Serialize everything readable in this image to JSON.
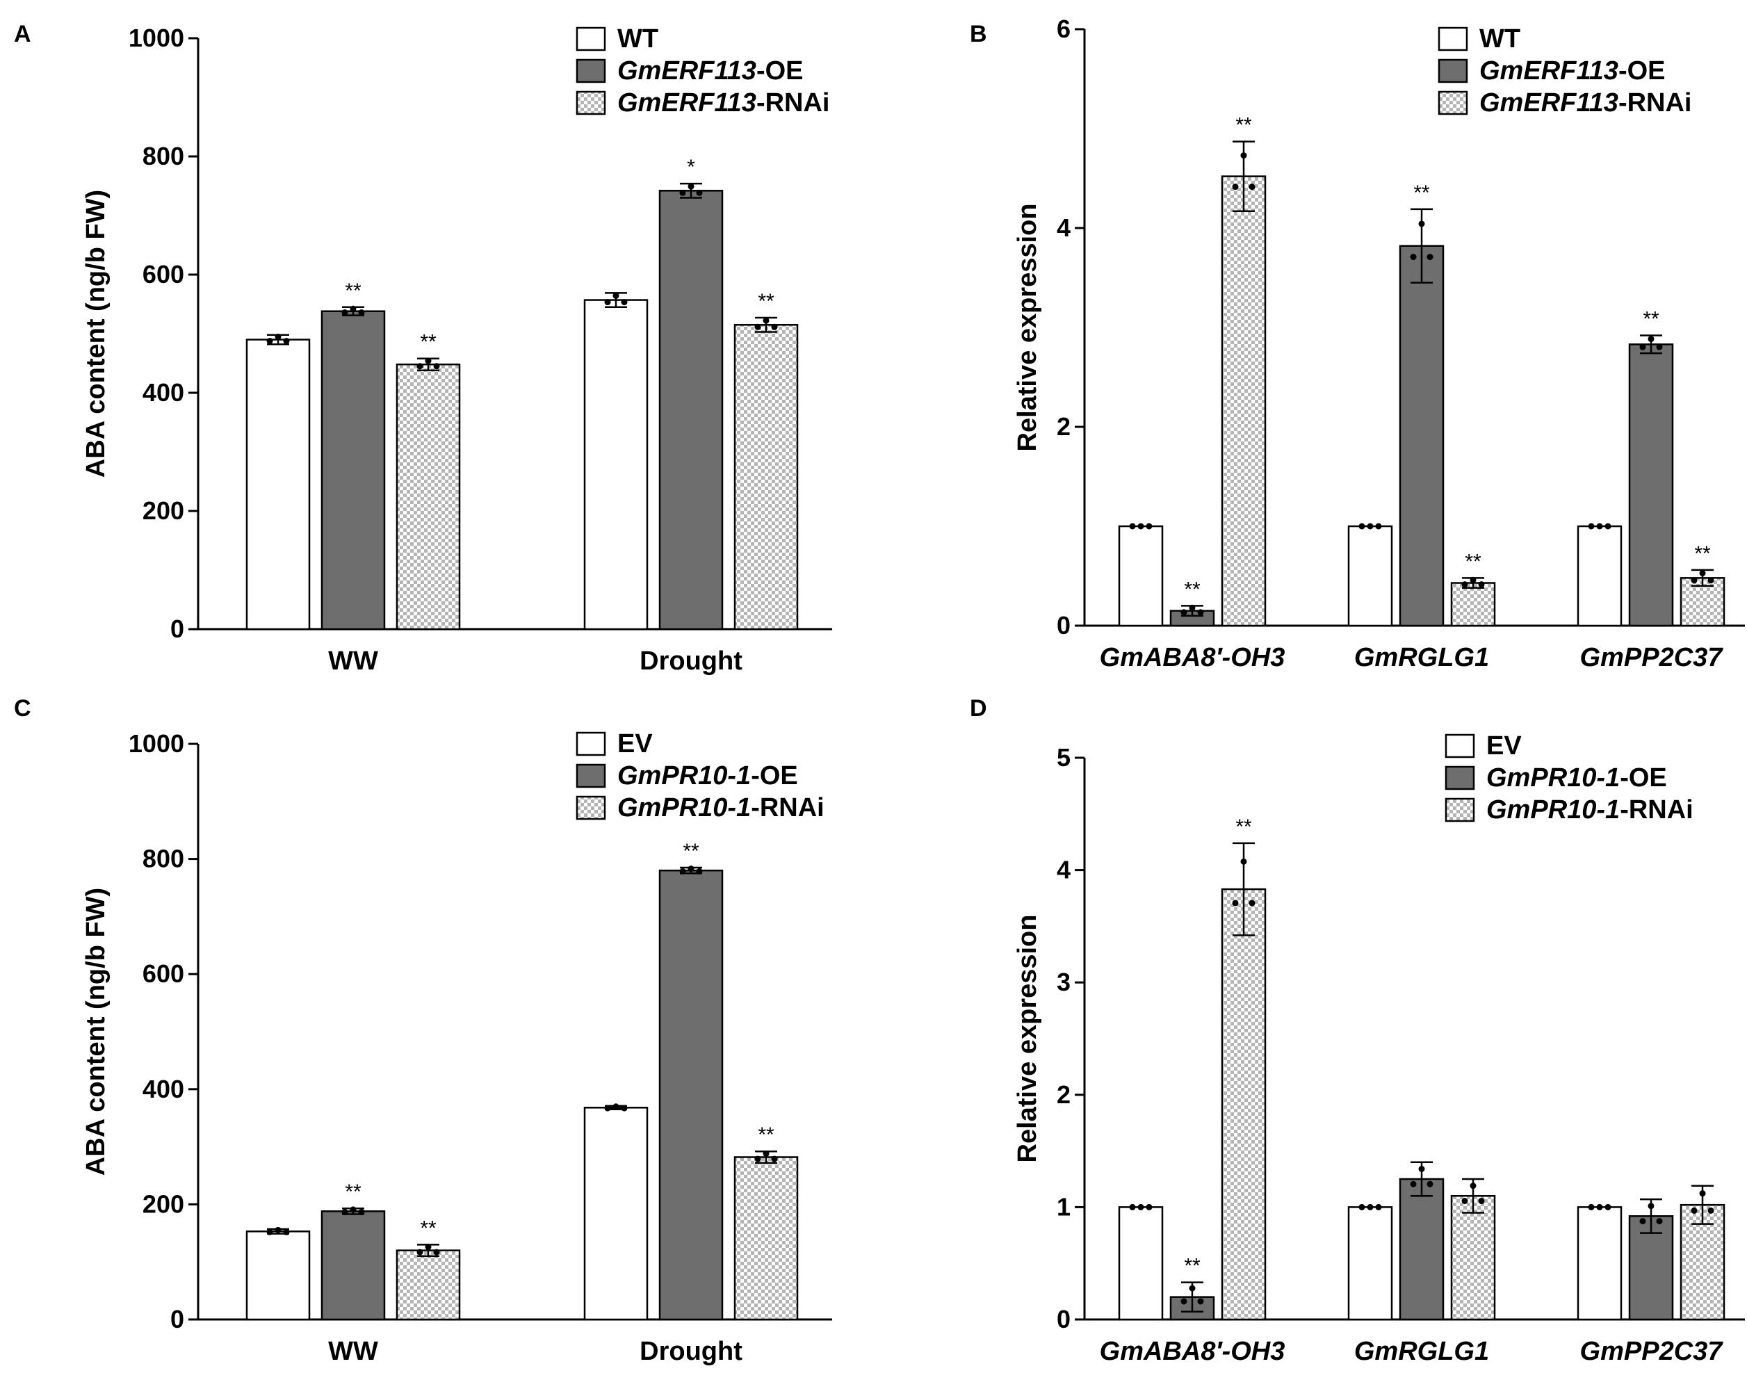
{
  "colors": {
    "wt": "#ffffff",
    "oe": "#6e6e6e",
    "rnai_bg": "#ffffff",
    "rnai_check": "#b4b4b4",
    "stroke": "#000000"
  },
  "chart_data": [
    {
      "panel": "A",
      "type": "bar",
      "ylabel": "ABA content (ng/b FW)",
      "ylim": [
        0,
        1000
      ],
      "yticks": [
        0,
        200,
        400,
        600,
        800,
        1000
      ],
      "categories": [
        {
          "text": "WW",
          "italic": false
        },
        {
          "text": "Drought",
          "italic": false
        }
      ],
      "legend": [
        {
          "parts": [
            {
              "text": "WT",
              "italic": false
            }
          ]
        },
        {
          "parts": [
            {
              "text": "GmERF113",
              "italic": true
            },
            {
              "text": "-OE",
              "italic": false
            }
          ]
        },
        {
          "parts": [
            {
              "text": "GmERF113",
              "italic": true
            },
            {
              "text": "-RNAi",
              "italic": false
            }
          ]
        }
      ],
      "series": [
        {
          "values": [
            490,
            557
          ],
          "errors": [
            8,
            12
          ],
          "sig": [
            "",
            ""
          ]
        },
        {
          "values": [
            538,
            742
          ],
          "errors": [
            7,
            12
          ],
          "sig": [
            "**",
            "*"
          ]
        },
        {
          "values": [
            448,
            515
          ],
          "errors": [
            10,
            12
          ],
          "sig": [
            "**",
            "**"
          ]
        }
      ]
    },
    {
      "panel": "B",
      "type": "bar",
      "ylabel": "Relative expression",
      "ylim": [
        0,
        6
      ],
      "yticks": [
        0,
        2,
        4,
        6
      ],
      "categories": [
        {
          "text": "GmABA8′-OH3",
          "italic": true
        },
        {
          "text": "GmRGLG1",
          "italic": true
        },
        {
          "text": "GmPP2C37",
          "italic": true
        }
      ],
      "legend": [
        {
          "parts": [
            {
              "text": "WT",
              "italic": false
            }
          ]
        },
        {
          "parts": [
            {
              "text": "GmERF113",
              "italic": true
            },
            {
              "text": "-OE",
              "italic": false
            }
          ]
        },
        {
          "parts": [
            {
              "text": "GmERF113",
              "italic": true
            },
            {
              "text": "-RNAi",
              "italic": false
            }
          ]
        }
      ],
      "series": [
        {
          "values": [
            1.0,
            1.0,
            1.0
          ],
          "errors": [
            0,
            0,
            0
          ],
          "sig": [
            "",
            "",
            ""
          ]
        },
        {
          "values": [
            0.15,
            3.82,
            2.83
          ],
          "errors": [
            0.05,
            0.37,
            0.09
          ],
          "sig": [
            "**",
            "**",
            "**"
          ]
        },
        {
          "values": [
            4.52,
            0.43,
            0.48
          ],
          "errors": [
            0.35,
            0.05,
            0.08
          ],
          "sig": [
            "**",
            "**",
            "**"
          ]
        }
      ]
    },
    {
      "panel": "C",
      "type": "bar",
      "ylabel": "ABA content (ng/b FW)",
      "ylim": [
        0,
        1000
      ],
      "yticks": [
        0,
        200,
        400,
        600,
        800,
        1000
      ],
      "categories": [
        {
          "text": "WW",
          "italic": false
        },
        {
          "text": "Drought",
          "italic": false
        }
      ],
      "legend": [
        {
          "parts": [
            {
              "text": "EV",
              "italic": false
            }
          ]
        },
        {
          "parts": [
            {
              "text": "GmPR10-1",
              "italic": true
            },
            {
              "text": "-OE",
              "italic": false
            }
          ]
        },
        {
          "parts": [
            {
              "text": "GmPR10-1",
              "italic": true
            },
            {
              "text": "-RNAi",
              "italic": false
            }
          ]
        }
      ],
      "series": [
        {
          "values": [
            153,
            368
          ],
          "errors": [
            4,
            3
          ],
          "sig": [
            "",
            ""
          ]
        },
        {
          "values": [
            188,
            780
          ],
          "errors": [
            5,
            5
          ],
          "sig": [
            "**",
            "**"
          ]
        },
        {
          "values": [
            120,
            282
          ],
          "errors": [
            10,
            10
          ],
          "sig": [
            "**",
            "**"
          ]
        }
      ]
    },
    {
      "panel": "D",
      "type": "bar",
      "ylabel": "Relative expression",
      "ylim": [
        0,
        5
      ],
      "yticks": [
        0,
        1,
        2,
        3,
        4,
        5
      ],
      "categories": [
        {
          "text": "GmABA8′-OH3",
          "italic": true
        },
        {
          "text": "GmRGLG1",
          "italic": true
        },
        {
          "text": "GmPP2C37",
          "italic": true
        }
      ],
      "legend": [
        {
          "parts": [
            {
              "text": "EV",
              "italic": false
            }
          ]
        },
        {
          "parts": [
            {
              "text": "GmPR10-1",
              "italic": true
            },
            {
              "text": "-OE",
              "italic": false
            }
          ]
        },
        {
          "parts": [
            {
              "text": "GmPR10-1",
              "italic": true
            },
            {
              "text": "-RNAi",
              "italic": false
            }
          ]
        }
      ],
      "series": [
        {
          "values": [
            1.0,
            1.0,
            1.0
          ],
          "errors": [
            0,
            0,
            0
          ],
          "sig": [
            "",
            "",
            ""
          ]
        },
        {
          "values": [
            0.2,
            1.25,
            0.92
          ],
          "errors": [
            0.13,
            0.15,
            0.15
          ],
          "sig": [
            "**",
            "",
            ""
          ]
        },
        {
          "values": [
            3.83,
            1.1,
            1.02
          ],
          "errors": [
            0.41,
            0.15,
            0.17
          ],
          "sig": [
            "**",
            "",
            ""
          ]
        }
      ]
    }
  ]
}
